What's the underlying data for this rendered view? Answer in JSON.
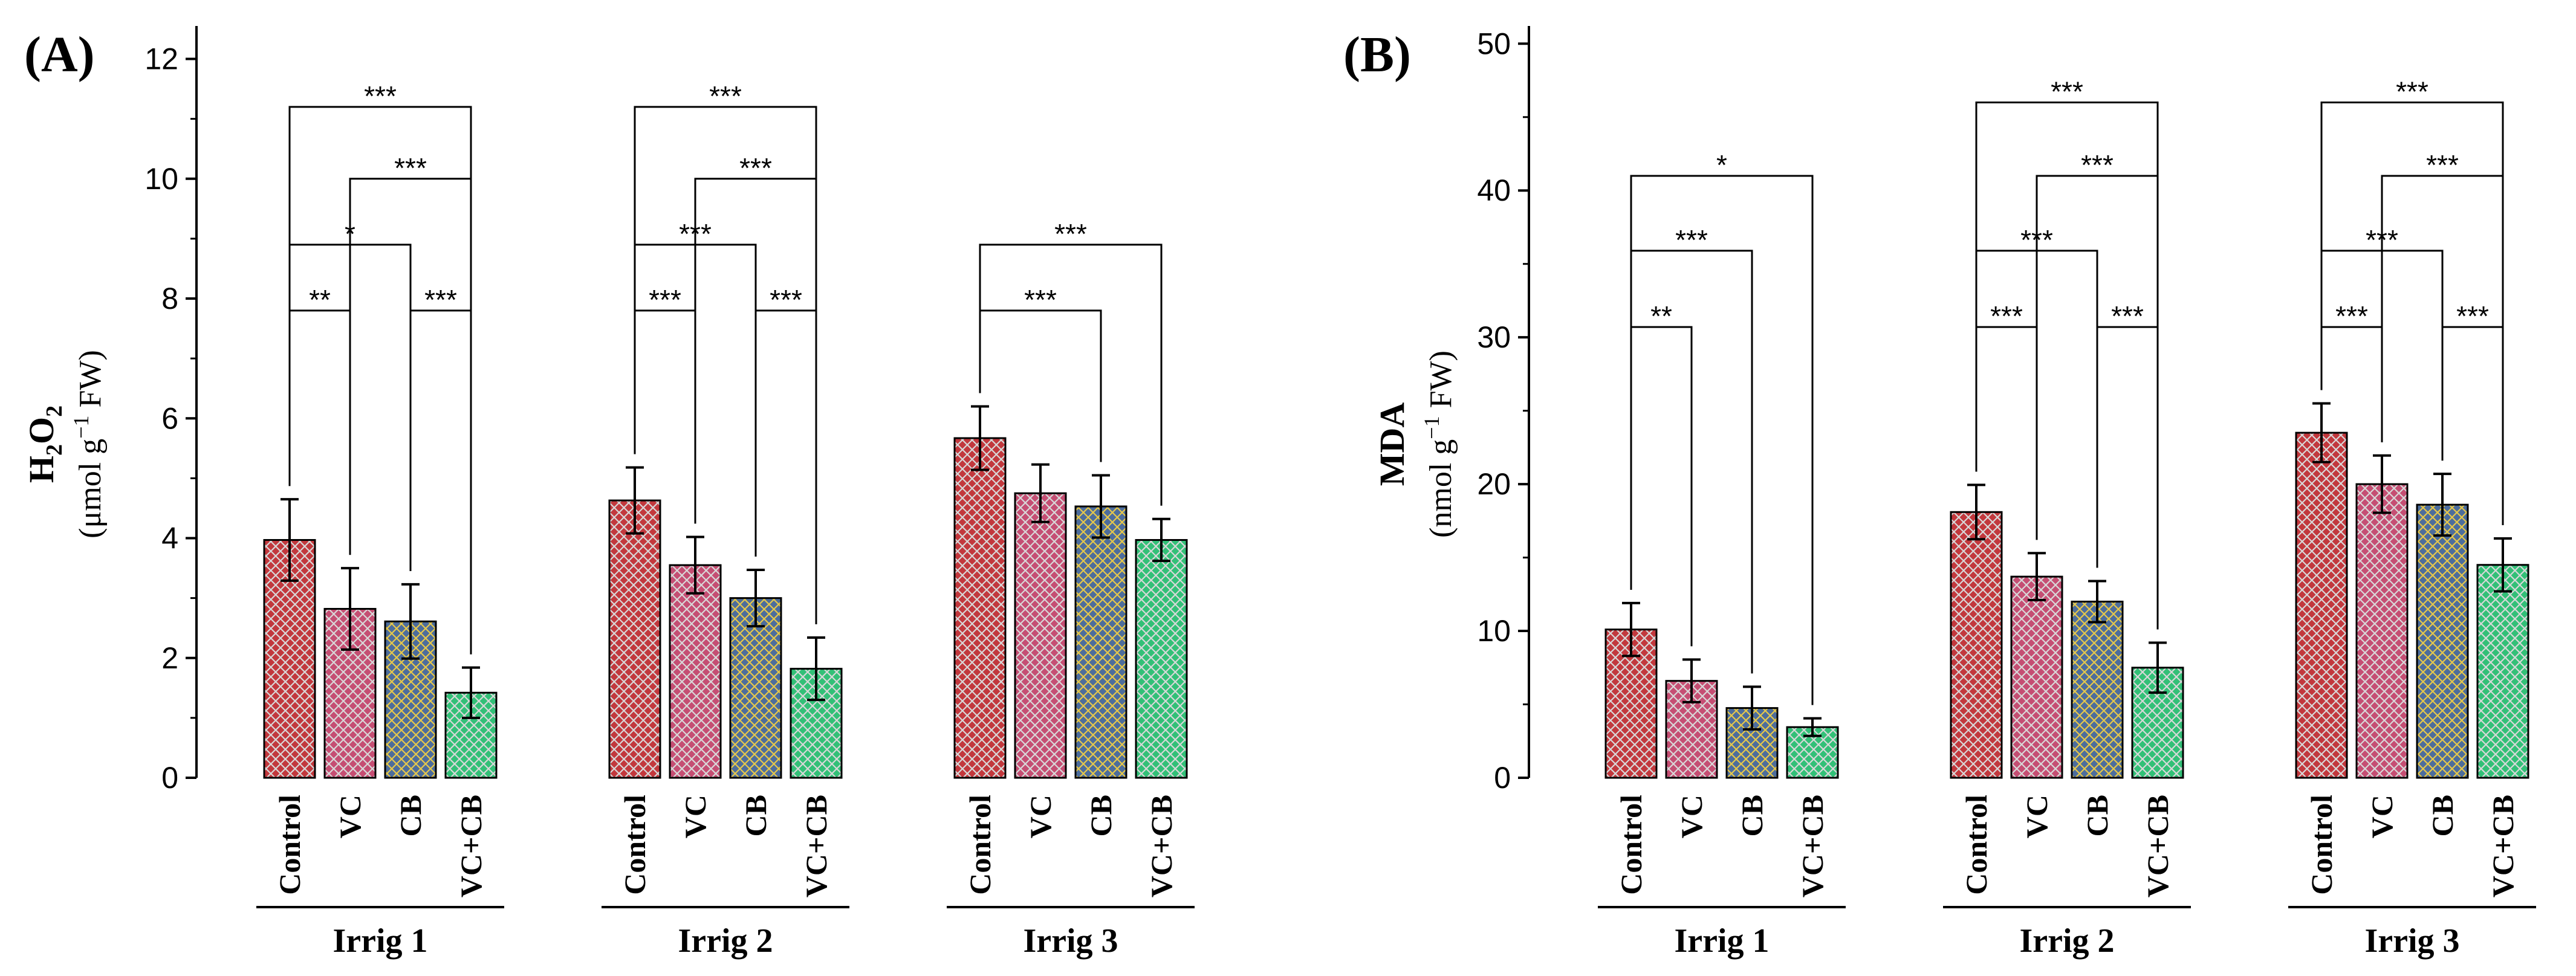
{
  "chart_data": [
    {
      "type": "bar",
      "panel": "(A)",
      "ylabel_main": "H2O2",
      "ylabel_main_parts": {
        "h": "H",
        "sub": "2",
        "o": "O",
        "sub2": "2"
      },
      "ylabel_unit": "(μmol g−1 FW)",
      "ylabel_unit_parts": {
        "pre": "(μmol g",
        "sup": "−1",
        "post": " FW)"
      },
      "ylim": [
        0,
        12.5
      ],
      "yticks": [
        0,
        2,
        4,
        6,
        8,
        10,
        12
      ],
      "groups": [
        "Irrig 1",
        "Irrig 2",
        "Irrig 3"
      ],
      "categories": [
        "Control",
        "VC",
        "CB",
        "VC+CB"
      ],
      "series": [
        {
          "group": "Irrig 1",
          "values": [
            3.97,
            2.82,
            2.61,
            1.42
          ],
          "errors": [
            0.68,
            0.68,
            0.62,
            0.42
          ]
        },
        {
          "group": "Irrig 2",
          "values": [
            4.63,
            3.55,
            3.0,
            1.82
          ],
          "errors": [
            0.55,
            0.47,
            0.47,
            0.52
          ]
        },
        {
          "group": "Irrig 3",
          "values": [
            5.67,
            4.75,
            4.53,
            3.97
          ],
          "errors": [
            0.53,
            0.48,
            0.52,
            0.35
          ]
        }
      ],
      "significance": [
        {
          "group": 0,
          "from": 0,
          "to": 3,
          "y": 11.2,
          "label": "***"
        },
        {
          "group": 0,
          "from": 1,
          "to": 3,
          "y": 10.0,
          "label": "***"
        },
        {
          "group": 0,
          "from": 0,
          "to": 2,
          "y": 8.9,
          "label": "*"
        },
        {
          "group": 0,
          "from": 0,
          "to": 1,
          "y": 7.8,
          "label": "**"
        },
        {
          "group": 0,
          "from": 2,
          "to": 3,
          "y": 7.8,
          "label": "***"
        },
        {
          "group": 1,
          "from": 0,
          "to": 3,
          "y": 11.2,
          "label": "***"
        },
        {
          "group": 1,
          "from": 1,
          "to": 3,
          "y": 10.0,
          "label": "***"
        },
        {
          "group": 1,
          "from": 0,
          "to": 2,
          "y": 8.9,
          "label": "***"
        },
        {
          "group": 1,
          "from": 0,
          "to": 1,
          "y": 7.8,
          "label": "***"
        },
        {
          "group": 1,
          "from": 2,
          "to": 3,
          "y": 7.8,
          "label": "***"
        },
        {
          "group": 2,
          "from": 0,
          "to": 3,
          "y": 8.9,
          "label": "***"
        },
        {
          "group": 2,
          "from": 0,
          "to": 2,
          "y": 7.8,
          "label": "***"
        }
      ]
    },
    {
      "type": "bar",
      "panel": "(B)",
      "ylabel_main": "MDA",
      "ylabel_unit": "(nmol g−1 FW)",
      "ylabel_unit_parts": {
        "pre": "(nmol g",
        "sup": "−1",
        "post": " FW)"
      },
      "ylim": [
        0,
        51
      ],
      "yticks": [
        0,
        10,
        20,
        30,
        40,
        50
      ],
      "groups": [
        "Irrig 1",
        "Irrig 2",
        "Irrig 3"
      ],
      "categories": [
        "Control",
        "VC",
        "CB",
        "VC+CB"
      ],
      "series": [
        {
          "group": "Irrig 1",
          "values": [
            10.1,
            6.6,
            4.75,
            3.45
          ],
          "errors": [
            1.8,
            1.45,
            1.45,
            0.6
          ]
        },
        {
          "group": "Irrig 2",
          "values": [
            18.1,
            13.7,
            12.0,
            7.5
          ],
          "errors": [
            1.85,
            1.6,
            1.4,
            1.7
          ]
        },
        {
          "group": "Irrig 3",
          "values": [
            23.5,
            20.0,
            18.6,
            14.5
          ],
          "errors": [
            2.0,
            1.95,
            2.1,
            1.8
          ]
        }
      ],
      "significance": [
        {
          "group": 0,
          "from": 0,
          "to": 3,
          "y": 41.0,
          "label": "*"
        },
        {
          "group": 0,
          "from": 0,
          "to": 2,
          "y": 35.9,
          "label": "***"
        },
        {
          "group": 0,
          "from": 0,
          "to": 1,
          "y": 30.7,
          "label": "**"
        },
        {
          "group": 1,
          "from": 0,
          "to": 3,
          "y": 46.0,
          "label": "***"
        },
        {
          "group": 1,
          "from": 1,
          "to": 3,
          "y": 41.0,
          "label": "***"
        },
        {
          "group": 1,
          "from": 0,
          "to": 2,
          "y": 35.9,
          "label": "***"
        },
        {
          "group": 1,
          "from": 0,
          "to": 1,
          "y": 30.7,
          "label": "***"
        },
        {
          "group": 1,
          "from": 2,
          "to": 3,
          "y": 30.7,
          "label": "***"
        },
        {
          "group": 2,
          "from": 0,
          "to": 3,
          "y": 46.0,
          "label": "***"
        },
        {
          "group": 2,
          "from": 1,
          "to": 3,
          "y": 41.0,
          "label": "***"
        },
        {
          "group": 2,
          "from": 0,
          "to": 2,
          "y": 35.9,
          "label": "***"
        },
        {
          "group": 2,
          "from": 0,
          "to": 1,
          "y": 30.7,
          "label": "***"
        },
        {
          "group": 2,
          "from": 2,
          "to": 3,
          "y": 30.7,
          "label": "***"
        }
      ]
    }
  ],
  "colors": {
    "Control": "#c2383d",
    "VC": "#c54e73",
    "CB": "#4d6d9c",
    "VC+CB": "#32c077",
    "hatch_CB": "#e6c84b",
    "hatch_default": "#d8d8d8"
  }
}
